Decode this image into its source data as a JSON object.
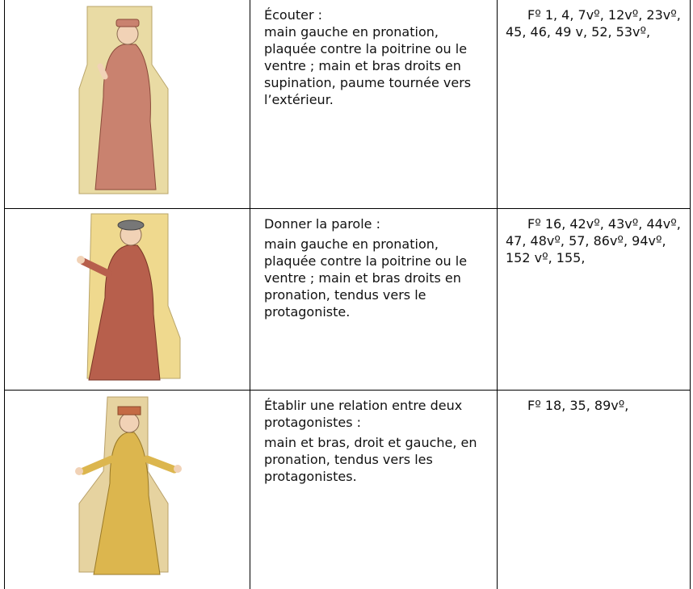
{
  "table": {
    "rows": [
      {
        "gesture": "Écouter :",
        "description": "main gauche en pronation, plaquée contre la poitrine ou le ventre ; main et bras droits en supination, paume tournée vers l’extérieur.",
        "folios": "Fº 1, 4, 7vº, 12vº, 23vº, 45, 46, 49 v, 52, 53vº,"
      },
      {
        "gesture": "Donner la parole :",
        "description": "main gauche en pronation, plaquée contre la poitrine ou le ventre ; main et bras droits en pronation, tendus vers le protagoniste.",
        "folios": "Fº 16, 42vº, 43vº, 44vº, 47, 48vº, 57, 86vº, 94vº, 152 vº, 155,"
      },
      {
        "gesture": "Établir une relation entre deux protagonistes :",
        "description": "main et bras, droit et gauche, en pronation, tendus vers les protagonistes.",
        "folios": "Fº 18, 35, 89vº,"
      }
    ]
  }
}
